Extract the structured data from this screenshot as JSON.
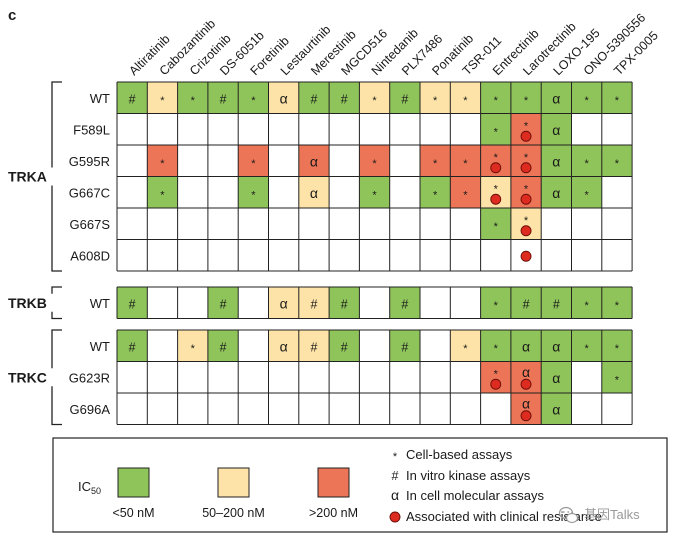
{
  "panel_label": "c",
  "chart_data": {
    "type": "table",
    "title": "",
    "drugs": [
      "Altiratinib",
      "Cabozantinib",
      "Crizotinib",
      "DS-6051b",
      "Foretinib",
      "Lestaurtinib",
      "Merestinib",
      "MGCD516",
      "Nintedanib",
      "PLX7486",
      "Ponatinib",
      "TSR-011",
      "Entrectinib",
      "Larotrectinib",
      "LOXO-195",
      "ONO-5390556",
      "TPX-0005"
    ],
    "groups": [
      {
        "name": "TRKA",
        "rows": [
          {
            "label": "WT",
            "cells": [
              {
                "col": 0,
                "level": "low",
                "marks": [
                  "#"
                ]
              },
              {
                "col": 1,
                "level": "mid",
                "marks": [
                  "*"
                ]
              },
              {
                "col": 2,
                "level": "low",
                "marks": [
                  "*"
                ]
              },
              {
                "col": 3,
                "level": "low",
                "marks": [
                  "#"
                ]
              },
              {
                "col": 4,
                "level": "low",
                "marks": [
                  "*"
                ]
              },
              {
                "col": 5,
                "level": "mid",
                "marks": [
                  "α"
                ]
              },
              {
                "col": 6,
                "level": "low",
                "marks": [
                  "#"
                ]
              },
              {
                "col": 7,
                "level": "low",
                "marks": [
                  "#"
                ]
              },
              {
                "col": 8,
                "level": "mid",
                "marks": [
                  "*"
                ]
              },
              {
                "col": 9,
                "level": "low",
                "marks": [
                  "#"
                ]
              },
              {
                "col": 10,
                "level": "mid",
                "marks": [
                  "*"
                ]
              },
              {
                "col": 11,
                "level": "mid",
                "marks": [
                  "*"
                ]
              },
              {
                "col": 12,
                "level": "low",
                "marks": [
                  "*"
                ]
              },
              {
                "col": 13,
                "level": "low",
                "marks": [
                  "*"
                ]
              },
              {
                "col": 14,
                "level": "low",
                "marks": [
                  "α"
                ]
              },
              {
                "col": 15,
                "level": "low",
                "marks": [
                  "*"
                ]
              },
              {
                "col": 16,
                "level": "low",
                "marks": [
                  "*"
                ]
              }
            ]
          },
          {
            "label": "F589L",
            "cells": [
              {
                "col": 12,
                "level": "low",
                "marks": [
                  "*"
                ]
              },
              {
                "col": 13,
                "level": "high",
                "marks": [
                  "*",
                  "resistance"
                ]
              },
              {
                "col": 14,
                "level": "low",
                "marks": [
                  "α"
                ]
              }
            ]
          },
          {
            "label": "G595R",
            "cells": [
              {
                "col": 1,
                "level": "high",
                "marks": [
                  "*"
                ]
              },
              {
                "col": 4,
                "level": "high",
                "marks": [
                  "*"
                ]
              },
              {
                "col": 6,
                "level": "high",
                "marks": [
                  "α"
                ]
              },
              {
                "col": 8,
                "level": "high",
                "marks": [
                  "*"
                ]
              },
              {
                "col": 10,
                "level": "high",
                "marks": [
                  "*"
                ]
              },
              {
                "col": 11,
                "level": "high",
                "marks": [
                  "*"
                ]
              },
              {
                "col": 12,
                "level": "high",
                "marks": [
                  "*",
                  "resistance"
                ]
              },
              {
                "col": 13,
                "level": "high",
                "marks": [
                  "*",
                  "resistance"
                ]
              },
              {
                "col": 14,
                "level": "low",
                "marks": [
                  "α"
                ]
              },
              {
                "col": 15,
                "level": "low",
                "marks": [
                  "*"
                ]
              },
              {
                "col": 16,
                "level": "low",
                "marks": [
                  "*"
                ]
              }
            ]
          },
          {
            "label": "G667C",
            "cells": [
              {
                "col": 1,
                "level": "low",
                "marks": [
                  "*"
                ]
              },
              {
                "col": 4,
                "level": "low",
                "marks": [
                  "*"
                ]
              },
              {
                "col": 6,
                "level": "mid",
                "marks": [
                  "α"
                ]
              },
              {
                "col": 8,
                "level": "low",
                "marks": [
                  "*"
                ]
              },
              {
                "col": 10,
                "level": "low",
                "marks": [
                  "*"
                ]
              },
              {
                "col": 11,
                "level": "high",
                "marks": [
                  "*"
                ]
              },
              {
                "col": 12,
                "level": "mid",
                "marks": [
                  "*",
                  "resistance"
                ]
              },
              {
                "col": 13,
                "level": "high",
                "marks": [
                  "*",
                  "resistance"
                ]
              },
              {
                "col": 14,
                "level": "low",
                "marks": [
                  "α"
                ]
              },
              {
                "col": 15,
                "level": "low",
                "marks": [
                  "*"
                ]
              }
            ]
          },
          {
            "label": "G667S",
            "cells": [
              {
                "col": 12,
                "level": "low",
                "marks": [
                  "*"
                ]
              },
              {
                "col": 13,
                "level": "mid",
                "marks": [
                  "*",
                  "resistance"
                ]
              }
            ]
          },
          {
            "label": "A608D",
            "cells": [
              {
                "col": 13,
                "level": "none",
                "marks": [
                  "resistance"
                ]
              }
            ]
          }
        ]
      },
      {
        "name": "TRKB",
        "rows": [
          {
            "label": "WT",
            "cells": [
              {
                "col": 0,
                "level": "low",
                "marks": [
                  "#"
                ]
              },
              {
                "col": 3,
                "level": "low",
                "marks": [
                  "#"
                ]
              },
              {
                "col": 5,
                "level": "mid",
                "marks": [
                  "α"
                ]
              },
              {
                "col": 6,
                "level": "mid",
                "marks": [
                  "#"
                ]
              },
              {
                "col": 7,
                "level": "low",
                "marks": [
                  "#"
                ]
              },
              {
                "col": 9,
                "level": "low",
                "marks": [
                  "#"
                ]
              },
              {
                "col": 12,
                "level": "low",
                "marks": [
                  "*"
                ]
              },
              {
                "col": 13,
                "level": "low",
                "marks": [
                  "#"
                ]
              },
              {
                "col": 14,
                "level": "low",
                "marks": [
                  "#"
                ]
              },
              {
                "col": 15,
                "level": "low",
                "marks": [
                  "*"
                ]
              },
              {
                "col": 16,
                "level": "low",
                "marks": [
                  "*"
                ]
              }
            ]
          }
        ]
      },
      {
        "name": "TRKC",
        "rows": [
          {
            "label": "WT",
            "cells": [
              {
                "col": 0,
                "level": "low",
                "marks": [
                  "#"
                ]
              },
              {
                "col": 2,
                "level": "mid",
                "marks": [
                  "*"
                ]
              },
              {
                "col": 3,
                "level": "low",
                "marks": [
                  "#"
                ]
              },
              {
                "col": 5,
                "level": "mid",
                "marks": [
                  "α"
                ]
              },
              {
                "col": 6,
                "level": "mid",
                "marks": [
                  "#"
                ]
              },
              {
                "col": 7,
                "level": "low",
                "marks": [
                  "#"
                ]
              },
              {
                "col": 9,
                "level": "low",
                "marks": [
                  "#"
                ]
              },
              {
                "col": 11,
                "level": "mid",
                "marks": [
                  "*"
                ]
              },
              {
                "col": 12,
                "level": "low",
                "marks": [
                  "*"
                ]
              },
              {
                "col": 13,
                "level": "low",
                "marks": [
                  "α"
                ]
              },
              {
                "col": 14,
                "level": "low",
                "marks": [
                  "α"
                ]
              },
              {
                "col": 15,
                "level": "low",
                "marks": [
                  "*"
                ]
              },
              {
                "col": 16,
                "level": "low",
                "marks": [
                  "*"
                ]
              }
            ]
          },
          {
            "label": "G623R",
            "cells": [
              {
                "col": 12,
                "level": "high",
                "marks": [
                  "*",
                  "resistance"
                ]
              },
              {
                "col": 13,
                "level": "high",
                "marks": [
                  "α",
                  "resistance"
                ]
              },
              {
                "col": 14,
                "level": "low",
                "marks": [
                  "α"
                ]
              },
              {
                "col": 16,
                "level": "low",
                "marks": [
                  "*"
                ]
              }
            ]
          },
          {
            "label": "G696A",
            "cells": [
              {
                "col": 13,
                "level": "high",
                "marks": [
                  "α",
                  "resistance"
                ]
              },
              {
                "col": 14,
                "level": "low",
                "marks": [
                  "α"
                ]
              }
            ]
          }
        ]
      }
    ],
    "legend": {
      "ic50_label": "IC",
      "ic50_subscript": "50",
      "levels": [
        {
          "key": "low",
          "label": "<50 nM"
        },
        {
          "key": "mid",
          "label": "50–200 nM"
        },
        {
          "key": "high",
          "label": ">200 nM"
        }
      ],
      "symbols": [
        {
          "mark": "*",
          "label": "Cell-based assays"
        },
        {
          "mark": "#",
          "label": "In vitro kinase assays"
        },
        {
          "mark": "α",
          "label": "In cell molecular assays"
        },
        {
          "mark": "resistance",
          "label": "Associated with clinical resistance"
        }
      ]
    }
  },
  "colors": {
    "low": "#8fc45a",
    "mid": "#fde3a7",
    "high": "#ec7457",
    "none": "#ffffff",
    "grid": "#222222",
    "dot": "#dd2b1f",
    "text": "#1a1a1a"
  },
  "watermark": "基因Talks"
}
